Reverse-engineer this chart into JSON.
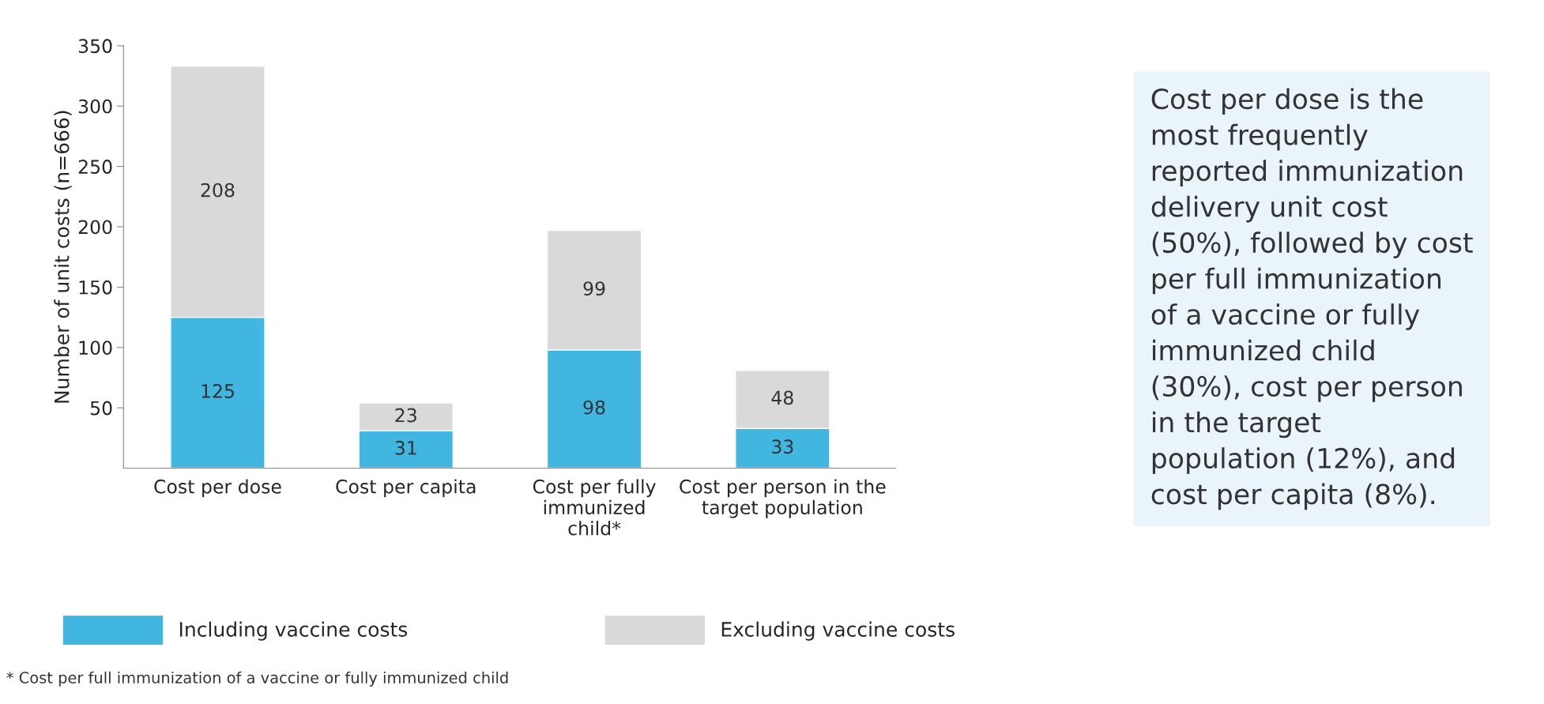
{
  "chart_data": {
    "type": "bar",
    "stacked": true,
    "ylabel": "Number of unit costs (n=666)",
    "categories": [
      "Cost per dose",
      "Cost per capita",
      "Cost per fully\nimmunized\nchild*",
      "Cost per person in the\ntarget population"
    ],
    "series": [
      {
        "name": "Including vaccine costs",
        "color": "#41b6e0",
        "values": [
          125,
          31,
          98,
          33
        ]
      },
      {
        "name": "Excluding vaccine costs",
        "color": "#d9d9d9",
        "values": [
          208,
          23,
          99,
          48
        ]
      }
    ],
    "ylim": [
      0,
      350
    ],
    "yticks": [
      50,
      100,
      150,
      200,
      250,
      300,
      350
    ],
    "data_labels": true,
    "grid": false,
    "legend": "bottom",
    "annotations": [
      "Cost per dose is the\nmost frequently\nreported immunization\ndelivery unit cost\n(50%), followed by cost\nper full immunization\nof a vaccine or fully\nimmunized child\n(30%), cost per person\nin the target\npopulation (12%), and\ncost per capita (8%).",
      "* Cost per full immunization of a vaccine or fully immunized child"
    ]
  }
}
